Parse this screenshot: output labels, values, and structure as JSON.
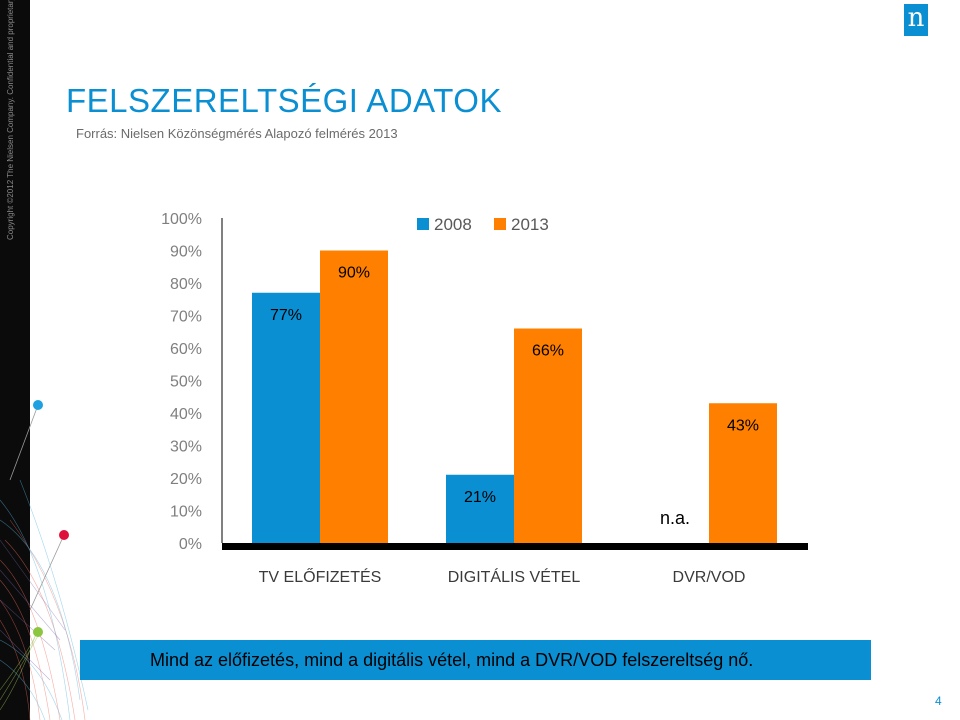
{
  "header": {
    "title": "FELSZERELTSÉGI ADATOK",
    "source": "Forrás: Nielsen Közönségmérés Alapozó felmérés 2013",
    "logo_letter": "n",
    "copyright": "Copyright ©2012 The Nielsen Company. Confidential and proprietary."
  },
  "colors": {
    "brand": "#0b8fd3",
    "series_2008": "#0b8fd3",
    "series_2013": "#ff8000"
  },
  "chart_data": {
    "type": "bar",
    "categories": [
      "TV ELŐFIZETÉS",
      "DIGITÁLIS VÉTEL",
      "DVR/VOD"
    ],
    "series": [
      {
        "name": "2008",
        "values": [
          77,
          21,
          null
        ],
        "labels": [
          "77%",
          "21%",
          "n.a."
        ]
      },
      {
        "name": "2013",
        "values": [
          90,
          66,
          43
        ],
        "labels": [
          "90%",
          "66%",
          "43%"
        ]
      }
    ],
    "ylim": [
      0,
      100
    ],
    "yticks": [
      "0%",
      "10%",
      "20%",
      "30%",
      "40%",
      "50%",
      "60%",
      "70%",
      "80%",
      "90%",
      "100%"
    ],
    "legend_position": "top",
    "grid": false
  },
  "footer": {
    "message": "Mind az előfizetés, mind a digitális vétel, mind a DVR/VOD felszereltség nő.",
    "page_number": "4"
  }
}
